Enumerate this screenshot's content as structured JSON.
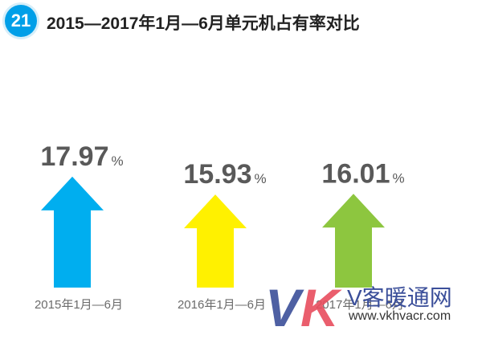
{
  "header": {
    "badge_number": "21",
    "title": "2015—2017年1月—6月单元机占有率对比"
  },
  "colors": {
    "badge": "#009fe8",
    "series": [
      "#00aeef",
      "#fff100",
      "#8dc63f"
    ],
    "value_text": "#595959",
    "category_text": "#6b6b6b"
  },
  "chart_data": {
    "type": "bar",
    "style": "arrow",
    "title": "2015—2017年1月—6月单元机占有率对比",
    "categories": [
      "2015年1月—6月",
      "2016年1月—6月",
      "2017年1月—6月"
    ],
    "values": [
      17.97,
      15.93,
      16.01
    ],
    "value_labels": [
      "17.97",
      "15.93",
      "16.01"
    ],
    "unit": "%",
    "xlabel": "",
    "ylabel": ""
  },
  "watermark": {
    "logo_text_v": "V",
    "logo_text_k": "K",
    "name": "暖通网",
    "name_prefix": "V客",
    "url": "www.vkhvacr.com"
  }
}
